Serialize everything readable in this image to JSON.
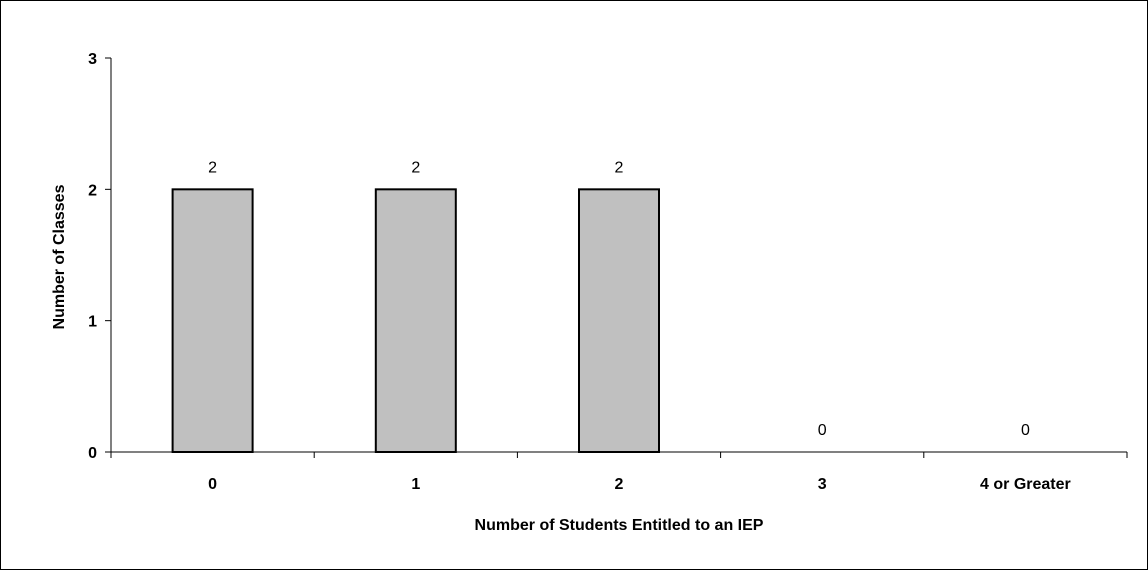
{
  "chart_data": {
    "type": "bar",
    "title": "",
    "xlabel": "Number of Students Entitled to an IEP",
    "ylabel": "Number of Classes",
    "categories": [
      "0",
      "1",
      "2",
      "3",
      "4 or Greater"
    ],
    "values": [
      2,
      2,
      2,
      0,
      0
    ],
    "data_labels": [
      "2",
      "2",
      "2",
      "0",
      "0"
    ],
    "ylim": [
      0,
      3
    ],
    "yticks": [
      "0",
      "1",
      "2",
      "3"
    ],
    "grid": false,
    "legend": "none",
    "bar_color": "#c0c0c0",
    "bar_edge_color": "#000000"
  }
}
